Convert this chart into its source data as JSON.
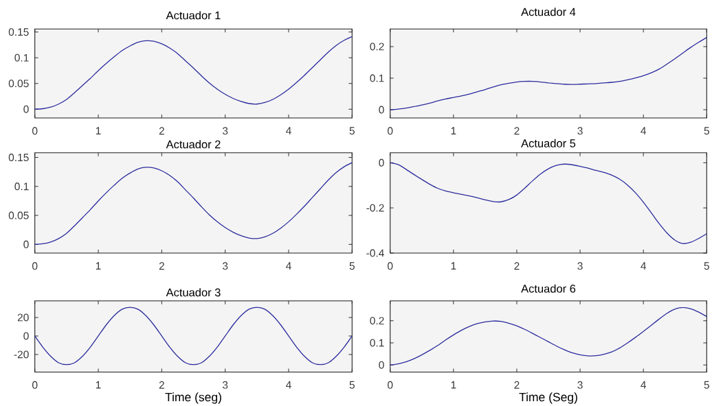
{
  "chart_data": [
    {
      "type": "line",
      "title": "Actuador 1",
      "color": "#2b2b9e",
      "xlim": [
        0,
        5
      ],
      "xticks": [
        0,
        1,
        2,
        3,
        4,
        5
      ],
      "ylim": [
        -0.017,
        0.156
      ],
      "yticks": [
        0,
        0.05,
        0.1,
        0.15
      ],
      "x": [
        0,
        0.125,
        0.25,
        0.375,
        0.5,
        0.625,
        0.75,
        0.875,
        1,
        1.125,
        1.25,
        1.375,
        1.5,
        1.625,
        1.75,
        1.875,
        2,
        2.125,
        2.25,
        2.375,
        2.5,
        2.625,
        2.75,
        2.875,
        3,
        3.125,
        3.25,
        3.375,
        3.5,
        3.625,
        3.75,
        3.875,
        4,
        4.125,
        4.25,
        4.375,
        4.5,
        4.625,
        4.75,
        4.875,
        5
      ],
      "values": [
        0,
        0.001,
        0.004,
        0.01,
        0.019,
        0.032,
        0.046,
        0.06,
        0.075,
        0.089,
        0.102,
        0.114,
        0.123,
        0.13,
        0.133,
        0.132,
        0.127,
        0.119,
        0.108,
        0.094,
        0.08,
        0.065,
        0.051,
        0.039,
        0.029,
        0.021,
        0.015,
        0.011,
        0.01,
        0.013,
        0.019,
        0.028,
        0.039,
        0.052,
        0.066,
        0.081,
        0.096,
        0.111,
        0.124,
        0.134,
        0.141
      ]
    },
    {
      "type": "line",
      "title": "Actuador 4",
      "color": "#2b2b9e",
      "xlim": [
        0,
        5
      ],
      "xticks": [
        0,
        1,
        2,
        3,
        4,
        5
      ],
      "ylim": [
        -0.026,
        0.256
      ],
      "yticks": [
        0,
        0.1,
        0.2
      ],
      "x": [
        0,
        0.125,
        0.25,
        0.375,
        0.5,
        0.625,
        0.75,
        0.875,
        1,
        1.125,
        1.25,
        1.375,
        1.5,
        1.625,
        1.75,
        1.875,
        2,
        2.125,
        2.25,
        2.375,
        2.5,
        2.625,
        2.75,
        2.875,
        3,
        3.125,
        3.25,
        3.375,
        3.5,
        3.625,
        3.75,
        3.875,
        4,
        4.125,
        4.25,
        4.375,
        4.5,
        4.625,
        4.75,
        4.875,
        5
      ],
      "values": [
        0,
        0.002,
        0.005,
        0.01,
        0.015,
        0.021,
        0.028,
        0.034,
        0.039,
        0.044,
        0.05,
        0.057,
        0.064,
        0.072,
        0.079,
        0.084,
        0.088,
        0.09,
        0.09,
        0.088,
        0.085,
        0.083,
        0.081,
        0.08,
        0.081,
        0.082,
        0.083,
        0.085,
        0.087,
        0.09,
        0.095,
        0.101,
        0.108,
        0.117,
        0.129,
        0.145,
        0.162,
        0.18,
        0.198,
        0.214,
        0.229
      ]
    },
    {
      "type": "line",
      "title": "Actuador 2",
      "color": "#2b2b9e",
      "xlim": [
        0,
        5
      ],
      "xticks": [
        0,
        1,
        2,
        3,
        4,
        5
      ],
      "ylim": [
        -0.015,
        0.158
      ],
      "yticks": [
        0,
        0.05,
        0.1,
        0.15
      ],
      "x": [
        0,
        0.125,
        0.25,
        0.375,
        0.5,
        0.625,
        0.75,
        0.875,
        1,
        1.125,
        1.25,
        1.375,
        1.5,
        1.625,
        1.75,
        1.875,
        2,
        2.125,
        2.25,
        2.375,
        2.5,
        2.625,
        2.75,
        2.875,
        3,
        3.125,
        3.25,
        3.375,
        3.5,
        3.625,
        3.75,
        3.875,
        4,
        4.125,
        4.25,
        4.375,
        4.5,
        4.625,
        4.75,
        4.875,
        5
      ],
      "values": [
        0,
        0.001,
        0.004,
        0.01,
        0.019,
        0.032,
        0.046,
        0.06,
        0.075,
        0.089,
        0.102,
        0.114,
        0.123,
        0.13,
        0.133,
        0.132,
        0.127,
        0.119,
        0.108,
        0.094,
        0.08,
        0.065,
        0.051,
        0.039,
        0.029,
        0.021,
        0.015,
        0.011,
        0.01,
        0.013,
        0.019,
        0.028,
        0.039,
        0.052,
        0.066,
        0.081,
        0.096,
        0.111,
        0.124,
        0.134,
        0.141
      ]
    },
    {
      "type": "line",
      "title": "Actuador 5",
      "color": "#2b2b9e",
      "xlim": [
        0,
        5
      ],
      "xticks": [
        0,
        1,
        2,
        3,
        4,
        5
      ],
      "ylim": [
        -0.4,
        0.044
      ],
      "yticks": [
        -0.4,
        -0.2,
        0
      ],
      "x": [
        0,
        0.125,
        0.25,
        0.375,
        0.5,
        0.625,
        0.75,
        0.875,
        1,
        1.125,
        1.25,
        1.375,
        1.5,
        1.625,
        1.75,
        1.875,
        2,
        2.125,
        2.25,
        2.375,
        2.5,
        2.625,
        2.75,
        2.875,
        3,
        3.125,
        3.25,
        3.375,
        3.5,
        3.625,
        3.75,
        3.875,
        4,
        4.125,
        4.25,
        4.375,
        4.5,
        4.625,
        4.75,
        4.875,
        5
      ],
      "values": [
        0,
        -0.008,
        -0.029,
        -0.052,
        -0.074,
        -0.095,
        -0.113,
        -0.125,
        -0.133,
        -0.14,
        -0.147,
        -0.155,
        -0.164,
        -0.172,
        -0.173,
        -0.163,
        -0.143,
        -0.113,
        -0.08,
        -0.05,
        -0.027,
        -0.012,
        -0.006,
        -0.009,
        -0.016,
        -0.024,
        -0.034,
        -0.043,
        -0.055,
        -0.073,
        -0.099,
        -0.133,
        -0.175,
        -0.222,
        -0.27,
        -0.312,
        -0.343,
        -0.358,
        -0.352,
        -0.335,
        -0.314
      ]
    },
    {
      "type": "line",
      "title": "Actuador 3",
      "xlabel": "Time (seg)",
      "color": "#2b2b9e",
      "xlim": [
        0,
        5
      ],
      "xticks": [
        0,
        1,
        2,
        3,
        4,
        5
      ],
      "ylim": [
        -39,
        38
      ],
      "yticks": [
        -20,
        0,
        20
      ],
      "x": [
        0,
        0.125,
        0.25,
        0.375,
        0.5,
        0.625,
        0.75,
        0.875,
        1,
        1.125,
        1.25,
        1.375,
        1.5,
        1.625,
        1.75,
        1.875,
        2,
        2.125,
        2.25,
        2.375,
        2.5,
        2.625,
        2.75,
        2.875,
        3,
        3.125,
        3.25,
        3.375,
        3.5,
        3.625,
        3.75,
        3.875,
        4,
        4.125,
        4.25,
        4.375,
        4.5,
        4.625,
        4.75,
        4.875,
        5
      ],
      "values": [
        0,
        -12,
        -22,
        -29,
        -31,
        -29,
        -22,
        -12,
        0,
        12,
        22,
        29,
        31,
        29,
        22,
        12,
        0,
        -12,
        -22,
        -29,
        -31,
        -29,
        -22,
        -12,
        0,
        12,
        22,
        29,
        31,
        29,
        22,
        12,
        0,
        -12,
        -22,
        -29,
        -31,
        -29,
        -22,
        -12,
        0
      ]
    },
    {
      "type": "line",
      "title": "Actuador 6",
      "xlabel": "Time (Seg)",
      "color": "#2b2b9e",
      "xlim": [
        0,
        5
      ],
      "xticks": [
        0,
        1,
        2,
        3,
        4,
        5
      ],
      "ylim": [
        -0.032,
        0.29
      ],
      "yticks": [
        0,
        0.1,
        0.2
      ],
      "x": [
        0,
        0.125,
        0.25,
        0.375,
        0.5,
        0.625,
        0.75,
        0.875,
        1,
        1.125,
        1.25,
        1.375,
        1.5,
        1.625,
        1.75,
        1.875,
        2,
        2.125,
        2.25,
        2.375,
        2.5,
        2.625,
        2.75,
        2.875,
        3,
        3.125,
        3.25,
        3.375,
        3.5,
        3.625,
        3.75,
        3.875,
        4,
        4.125,
        4.25,
        4.375,
        4.5,
        4.625,
        4.75,
        4.875,
        5
      ],
      "values": [
        0,
        0.005,
        0.014,
        0.028,
        0.046,
        0.066,
        0.088,
        0.113,
        0.136,
        0.157,
        0.174,
        0.187,
        0.195,
        0.199,
        0.197,
        0.189,
        0.177,
        0.161,
        0.143,
        0.124,
        0.105,
        0.086,
        0.069,
        0.055,
        0.046,
        0.041,
        0.042,
        0.048,
        0.059,
        0.077,
        0.1,
        0.125,
        0.152,
        0.18,
        0.208,
        0.234,
        0.253,
        0.26,
        0.254,
        0.239,
        0.219
      ]
    }
  ]
}
